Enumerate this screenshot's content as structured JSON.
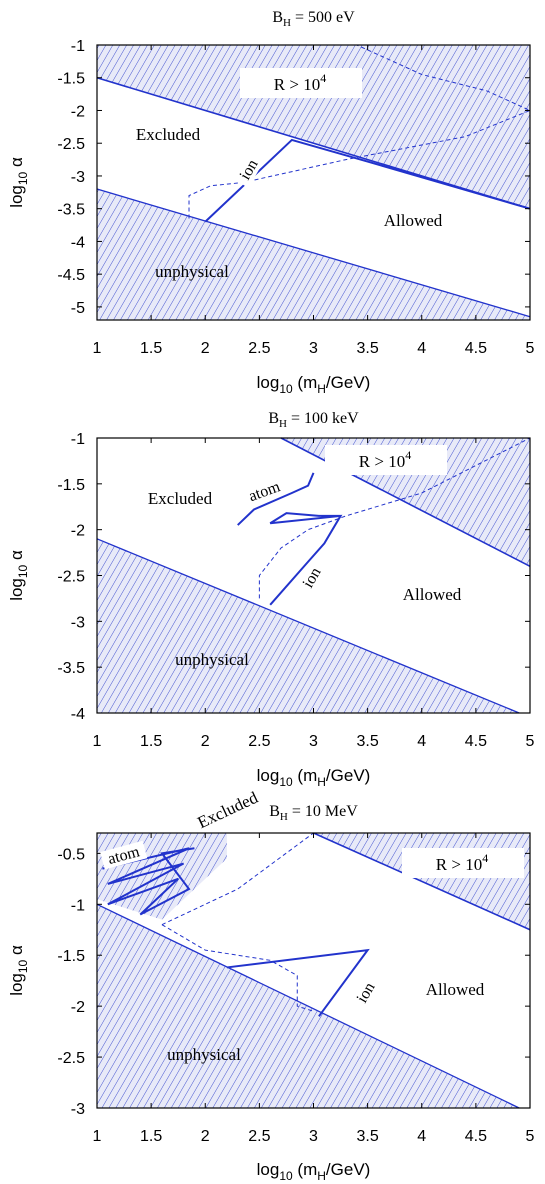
{
  "chart_data": [
    {
      "type": "region-plot",
      "title_main": "B",
      "title_sub": "H",
      "title_rest": " = 500 eV",
      "xlabel_main": "log",
      "xlabel_sub": "10",
      "xlabel_rest": " (m",
      "xlabel_sub2": "H",
      "xlabel_end": "/GeV)",
      "ylabel_main": "log",
      "ylabel_sub": "10",
      "ylabel_rest": " α",
      "xlim": [
        1,
        5
      ],
      "ylim": [
        -5.2,
        -1
      ],
      "xticks": [
        1,
        1.5,
        2,
        2.5,
        3,
        3.5,
        4,
        4.5,
        5
      ],
      "xtick_labels": [
        "1",
        "1.5",
        "2",
        "2.5",
        "3",
        "3.5",
        "4",
        "4.5",
        "5"
      ],
      "yticks": [
        -1,
        -1.5,
        -2,
        -2.5,
        -3,
        -3.5,
        -4,
        -4.5,
        -5
      ],
      "ytick_labels": [
        "-1",
        "-1.5",
        "-2",
        "-2.5",
        "-3",
        "-3.5",
        "-4",
        "-4.5",
        "-5"
      ],
      "upper_boundary": [
        [
          1,
          -1.5
        ],
        [
          5,
          -3.5
        ]
      ],
      "lower_boundary": [
        [
          1,
          -3.2
        ],
        [
          5,
          -5.15
        ]
      ],
      "ion_curve": [
        [
          2.0,
          -3.7
        ],
        [
          2.8,
          -2.45
        ],
        [
          3.5,
          -2.78
        ],
        [
          5,
          -3.5
        ]
      ],
      "dashed_curve": [
        [
          1.85,
          -3.65
        ],
        [
          1.85,
          -3.3
        ],
        [
          2.05,
          -3.15
        ],
        [
          2.35,
          -3.1
        ],
        [
          3.3,
          -2.75
        ],
        [
          4.4,
          -2.4
        ],
        [
          5,
          -2.0
        ],
        [
          4.6,
          -1.7
        ],
        [
          4.0,
          -1.45
        ],
        [
          3.4,
          -1.0
        ]
      ],
      "region_labels": {
        "excluded": "Excluded",
        "allowed": "Allowed",
        "unphysical": "unphysical",
        "r_label": "R > 10",
        "r_exp": "4"
      },
      "curve_labels": {
        "ion": "ion"
      }
    },
    {
      "type": "region-plot",
      "title_main": "B",
      "title_sub": "H",
      "title_rest": " = 100 keV",
      "xlabel_main": "log",
      "xlabel_sub": "10",
      "xlabel_rest": " (m",
      "xlabel_sub2": "H",
      "xlabel_end": "/GeV)",
      "ylabel_main": "log",
      "ylabel_sub": "10",
      "ylabel_rest": " α",
      "xlim": [
        1,
        5
      ],
      "ylim": [
        -4,
        -1
      ],
      "xticks": [
        1,
        1.5,
        2,
        2.5,
        3,
        3.5,
        4,
        4.5,
        5
      ],
      "xtick_labels": [
        "1",
        "1.5",
        "2",
        "2.5",
        "3",
        "3.5",
        "4",
        "4.5",
        "5"
      ],
      "yticks": [
        -1,
        -1.5,
        -2,
        -2.5,
        -3,
        -3.5,
        -4
      ],
      "ytick_labels": [
        "-1",
        "-1.5",
        "-2",
        "-2.5",
        "-3",
        "-3.5",
        "-4"
      ],
      "upper_boundary": [
        [
          2.7,
          -1.0
        ],
        [
          5,
          -2.4
        ]
      ],
      "lower_boundary": [
        [
          1,
          -2.1
        ],
        [
          4.9,
          -4.0
        ]
      ],
      "atom_curve": [
        [
          2.3,
          -1.95
        ],
        [
          2.45,
          -1.78
        ],
        [
          2.8,
          -1.6
        ],
        [
          2.95,
          -1.52
        ],
        [
          3.0,
          -1.38
        ]
      ],
      "ion_curve": [
        [
          2.6,
          -2.82
        ],
        [
          2.95,
          -2.35
        ],
        [
          3.1,
          -2.15
        ],
        [
          3.25,
          -1.85
        ],
        [
          2.6,
          -1.93
        ],
        [
          2.75,
          -1.82
        ],
        [
          3.05,
          -1.85
        ],
        [
          3.25,
          -1.85
        ]
      ],
      "dashed_curve": [
        [
          2.5,
          -2.75
        ],
        [
          2.5,
          -2.5
        ],
        [
          2.7,
          -2.2
        ],
        [
          2.95,
          -2.0
        ],
        [
          3.3,
          -1.85
        ],
        [
          4.0,
          -1.6
        ],
        [
          5,
          -1.0
        ]
      ],
      "region_labels": {
        "excluded": "Excluded",
        "allowed": "Allowed",
        "unphysical": "unphysical",
        "r_label": "R > 10",
        "r_exp": "4"
      },
      "curve_labels": {
        "ion": "ion",
        "atom": "atom"
      }
    },
    {
      "type": "region-plot",
      "title_main": "B",
      "title_sub": "H",
      "title_rest": " = 10 MeV",
      "xlabel_main": "log",
      "xlabel_sub": "10",
      "xlabel_rest": " (m",
      "xlabel_sub2": "H",
      "xlabel_end": "/GeV)",
      "ylabel_main": "log",
      "ylabel_sub": "10",
      "ylabel_rest": " α",
      "xlim": [
        1,
        5
      ],
      "ylim": [
        -3,
        -0.3
      ],
      "xticks": [
        1,
        1.5,
        2,
        2.5,
        3,
        3.5,
        4,
        4.5,
        5
      ],
      "xtick_labels": [
        "1",
        "1.5",
        "2",
        "2.5",
        "3",
        "3.5",
        "4",
        "4.5",
        "5"
      ],
      "yticks": [
        -0.5,
        -1,
        -1.5,
        -2,
        -2.5,
        -3
      ],
      "ytick_labels": [
        "-0.5",
        "-1",
        "-1.5",
        "-2",
        "-2.5",
        "-3"
      ],
      "upper_boundary": [
        [
          3.0,
          -0.3
        ],
        [
          5,
          -1.25
        ]
      ],
      "lower_boundary": [
        [
          1,
          -1.0
        ],
        [
          4.9,
          -3.0
        ]
      ],
      "atom_curve": [
        [
          1.05,
          -0.65
        ],
        [
          1.85,
          -0.45
        ],
        [
          1.1,
          -0.8
        ],
        [
          1.8,
          -0.6
        ],
        [
          1.1,
          -1.0
        ],
        [
          1.75,
          -0.75
        ],
        [
          1.4,
          -1.1
        ],
        [
          1.85,
          -0.85
        ],
        [
          1.6,
          -0.5
        ],
        [
          1.9,
          -0.45
        ]
      ],
      "ion_curve": [
        [
          2.2,
          -1.62
        ],
        [
          3.5,
          -1.45
        ],
        [
          3.05,
          -2.1
        ]
      ],
      "dashed_curve": [
        [
          1.6,
          -1.2
        ],
        [
          2.0,
          -1.45
        ],
        [
          2.6,
          -1.55
        ],
        [
          2.85,
          -1.7
        ],
        [
          2.85,
          -2.0
        ],
        [
          3.0,
          -2.05
        ]
      ],
      "dashed_curve_2": [
        [
          1.6,
          -1.2
        ],
        [
          2.3,
          -0.85
        ],
        [
          3.0,
          -0.3
        ]
      ],
      "region_labels": {
        "excluded": "Excluded",
        "allowed": "Allowed",
        "unphysical": "unphysical",
        "r_label": "R > 10",
        "r_exp": "4"
      },
      "curve_labels": {
        "ion": "ion",
        "atom": "atom"
      }
    }
  ],
  "colors": {
    "curve": "#2233cc",
    "hatch": "#3344cc",
    "fill": "#dde0f5",
    "axis": "#000000"
  }
}
